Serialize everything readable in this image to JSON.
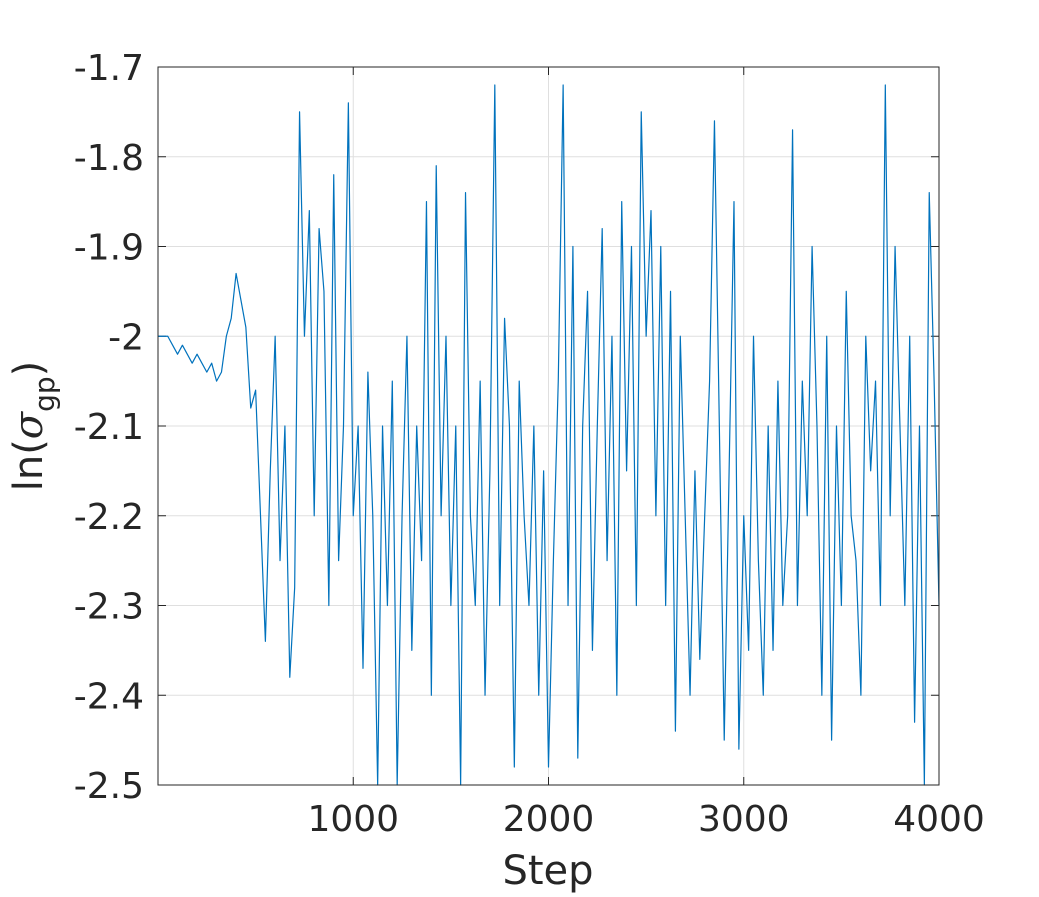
{
  "chart_data": {
    "type": "line",
    "xlabel": "Step",
    "ylabel": [
      "ln(",
      "σ",
      "gp",
      ")"
    ],
    "xlim": [
      0,
      4000
    ],
    "xticks": [
      1000,
      2000,
      3000,
      4000
    ],
    "ylim": [
      -2.5,
      -1.7
    ],
    "yticks": [
      -2.5,
      -2.4,
      -2.3,
      -2.2,
      -2.1,
      -2,
      -1.9,
      -1.8,
      -1.7
    ],
    "grid": true,
    "x": [
      0,
      25,
      50,
      75,
      100,
      125,
      150,
      175,
      200,
      225,
      250,
      275,
      300,
      325,
      350,
      375,
      400,
      425,
      450,
      475,
      500,
      525,
      550,
      575,
      600,
      625,
      650,
      675,
      700,
      725,
      750,
      775,
      800,
      825,
      850,
      875,
      900,
      925,
      950,
      975,
      1000,
      1025,
      1050,
      1075,
      1100,
      1125,
      1150,
      1175,
      1200,
      1225,
      1250,
      1275,
      1300,
      1325,
      1350,
      1375,
      1400,
      1425,
      1450,
      1475,
      1500,
      1525,
      1550,
      1575,
      1600,
      1625,
      1650,
      1675,
      1700,
      1725,
      1750,
      1775,
      1800,
      1825,
      1850,
      1875,
      1900,
      1925,
      1950,
      1975,
      2000,
      2025,
      2050,
      2075,
      2100,
      2125,
      2150,
      2175,
      2200,
      2225,
      2250,
      2275,
      2300,
      2325,
      2350,
      2375,
      2400,
      2425,
      2450,
      2475,
      2500,
      2525,
      2550,
      2575,
      2600,
      2625,
      2650,
      2675,
      2700,
      2725,
      2750,
      2775,
      2800,
      2825,
      2850,
      2875,
      2900,
      2925,
      2950,
      2975,
      3000,
      3025,
      3050,
      3075,
      3100,
      3125,
      3150,
      3175,
      3200,
      3225,
      3250,
      3275,
      3300,
      3325,
      3350,
      3375,
      3400,
      3425,
      3450,
      3475,
      3500,
      3525,
      3550,
      3575,
      3600,
      3625,
      3650,
      3675,
      3700,
      3725,
      3750,
      3775,
      3800,
      3825,
      3850,
      3875,
      3900,
      3925,
      3950,
      3975,
      4000
    ],
    "series": [
      {
        "color": "#0072BD",
        "values": [
          -2.0,
          -2.0,
          -2.0,
          -2.01,
          -2.02,
          -2.01,
          -2.02,
          -2.03,
          -2.02,
          -2.03,
          -2.04,
          -2.03,
          -2.05,
          -2.04,
          -2.0,
          -1.98,
          -1.93,
          -1.96,
          -1.99,
          -2.08,
          -2.06,
          -2.2,
          -2.34,
          -2.15,
          -2.0,
          -2.25,
          -2.1,
          -2.38,
          -2.28,
          -1.75,
          -2.0,
          -1.86,
          -2.2,
          -1.88,
          -1.95,
          -2.3,
          -1.82,
          -2.25,
          -2.1,
          -1.74,
          -2.2,
          -2.1,
          -2.37,
          -2.04,
          -2.2,
          -2.5,
          -2.1,
          -2.3,
          -2.05,
          -2.5,
          -2.2,
          -2.0,
          -2.35,
          -2.1,
          -2.25,
          -1.85,
          -2.4,
          -1.81,
          -2.2,
          -2.0,
          -2.3,
          -2.1,
          -2.5,
          -1.84,
          -2.2,
          -2.3,
          -2.05,
          -2.4,
          -2.15,
          -1.72,
          -2.3,
          -1.98,
          -2.1,
          -2.48,
          -2.05,
          -2.2,
          -2.3,
          -2.1,
          -2.4,
          -2.15,
          -2.48,
          -2.25,
          -2.05,
          -1.72,
          -2.3,
          -1.9,
          -2.47,
          -2.1,
          -1.95,
          -2.35,
          -2.1,
          -1.88,
          -2.25,
          -2.0,
          -2.4,
          -1.85,
          -2.15,
          -1.9,
          -2.3,
          -1.75,
          -2.0,
          -1.86,
          -2.2,
          -1.9,
          -2.3,
          -1.95,
          -2.44,
          -2.0,
          -2.2,
          -2.4,
          -2.15,
          -2.36,
          -2.2,
          -2.05,
          -1.76,
          -2.1,
          -2.45,
          -2.15,
          -1.85,
          -2.46,
          -2.2,
          -2.35,
          -2.0,
          -2.25,
          -2.4,
          -2.1,
          -2.35,
          -2.05,
          -2.3,
          -2.2,
          -1.77,
          -2.3,
          -2.05,
          -2.2,
          -1.9,
          -2.1,
          -2.4,
          -2.0,
          -2.45,
          -2.1,
          -2.3,
          -1.95,
          -2.2,
          -2.25,
          -2.4,
          -2.0,
          -2.15,
          -2.05,
          -2.3,
          -1.72,
          -2.2,
          -1.9,
          -2.1,
          -2.3,
          -2.0,
          -2.43,
          -2.1,
          -2.5,
          -1.84,
          -2.05,
          -2.3
        ]
      }
    ]
  }
}
